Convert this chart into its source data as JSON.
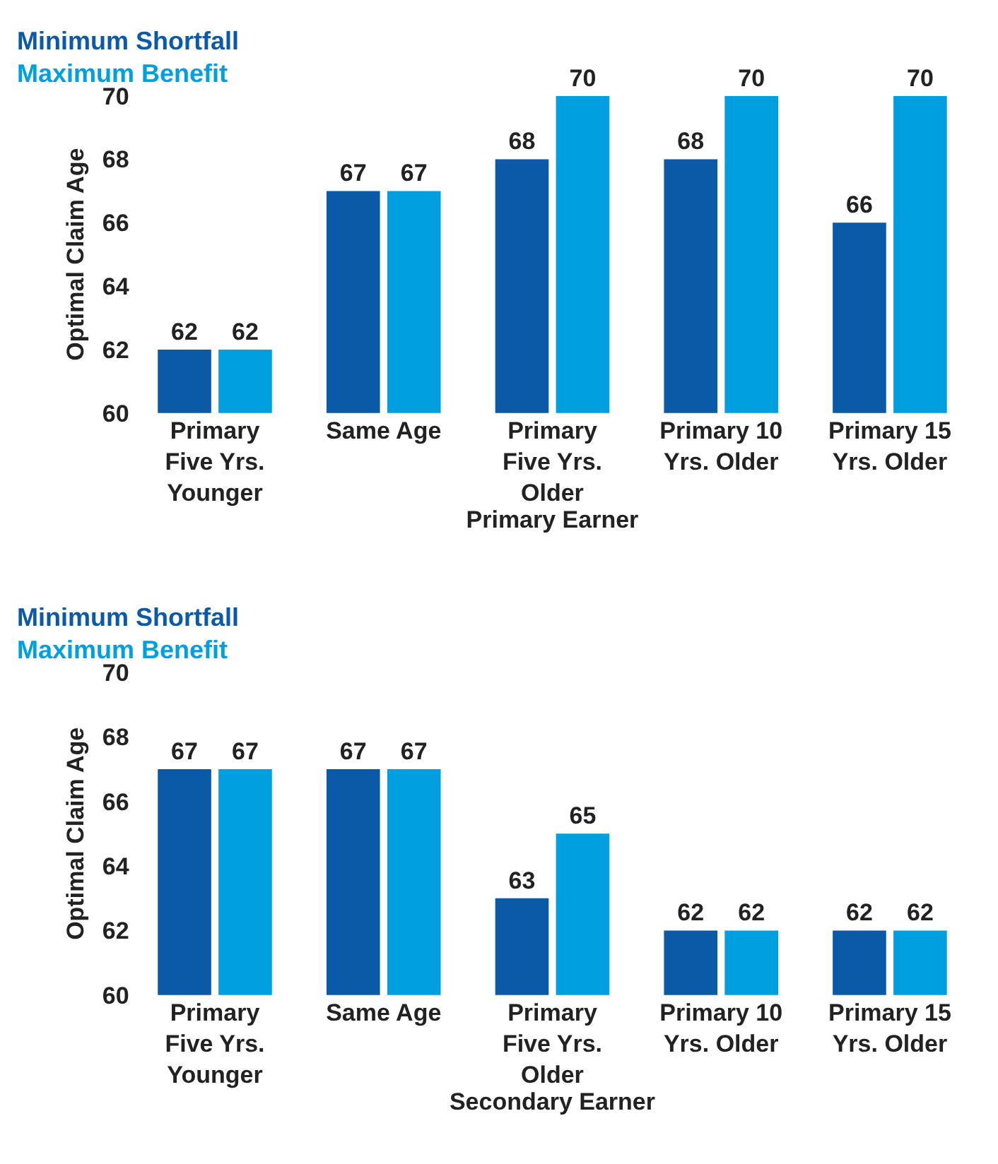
{
  "chart_data": [
    {
      "type": "bar",
      "categories": [
        "Primary\nFive Yrs.\nYounger",
        "Same Age",
        "Primary\nFive Yrs.\nOlder",
        "Primary 10\nYrs. Older",
        "Primary 15\nYrs. Older"
      ],
      "xlabel": "Primary Earner",
      "ylabel": "Optimal Claim Age",
      "ylim": [
        60,
        70
      ],
      "yticks": [
        60,
        62,
        64,
        66,
        68,
        70
      ],
      "legend": "top left",
      "grid": false,
      "data_labels": true,
      "series": [
        {
          "name": "Minimum Shortfall",
          "color": "#0a5aa8",
          "values": [
            62,
            67,
            68,
            68,
            66
          ]
        },
        {
          "name": "Maximum Benefit",
          "color": "#00a0e0",
          "values": [
            62,
            67,
            70,
            70,
            70
          ]
        }
      ]
    },
    {
      "type": "bar",
      "categories": [
        "Primary\nFive Yrs.\nYounger",
        "Same Age",
        "Primary\nFive Yrs.\nOlder",
        "Primary 10\nYrs. Older",
        "Primary 15\nYrs. Older"
      ],
      "xlabel": "Secondary Earner",
      "ylabel": "Optimal Claim Age",
      "ylim": [
        60,
        70
      ],
      "yticks": [
        60,
        62,
        64,
        66,
        68,
        70
      ],
      "legend": "top left",
      "grid": false,
      "data_labels": true,
      "series": [
        {
          "name": "Minimum Shortfall",
          "color": "#0a5aa8",
          "values": [
            67,
            67,
            63,
            62,
            62
          ]
        },
        {
          "name": "Maximum Benefit",
          "color": "#00a0e0",
          "values": [
            67,
            67,
            65,
            62,
            62
          ]
        }
      ]
    }
  ]
}
